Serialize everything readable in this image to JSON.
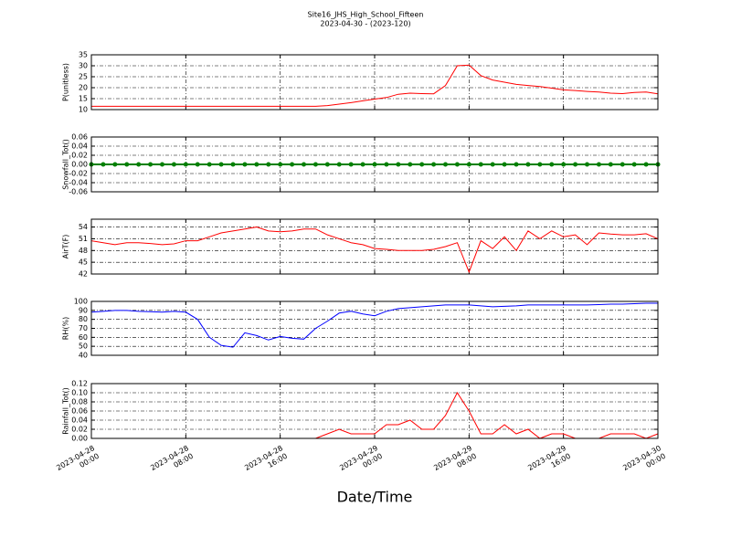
{
  "title": "Site16_JHS_High_School_Fifteen",
  "subtitle": "2023-04-30 - (2023-120)",
  "xlabel": "Date/Time",
  "chart_data": [
    {
      "type": "line",
      "ylabel": "P(unitless)",
      "color": "#ff0000",
      "grid": true,
      "x": [
        "2023-04-28 00:00",
        "2023-04-28 01:00",
        "2023-04-28 02:00",
        "2023-04-28 03:00",
        "2023-04-28 04:00",
        "2023-04-28 05:00",
        "2023-04-28 06:00",
        "2023-04-28 07:00",
        "2023-04-28 08:00",
        "2023-04-28 09:00",
        "2023-04-28 10:00",
        "2023-04-28 11:00",
        "2023-04-28 12:00",
        "2023-04-28 13:00",
        "2023-04-28 14:00",
        "2023-04-28 15:00",
        "2023-04-28 16:00",
        "2023-04-28 17:00",
        "2023-04-28 18:00",
        "2023-04-28 19:00",
        "2023-04-28 20:00",
        "2023-04-28 21:00",
        "2023-04-28 22:00",
        "2023-04-28 23:00",
        "2023-04-29 00:00",
        "2023-04-29 01:00",
        "2023-04-29 02:00",
        "2023-04-29 03:00",
        "2023-04-29 04:00",
        "2023-04-29 05:00",
        "2023-04-29 06:00",
        "2023-04-29 07:00",
        "2023-04-29 08:00",
        "2023-04-29 09:00",
        "2023-04-29 10:00",
        "2023-04-29 11:00",
        "2023-04-29 12:00",
        "2023-04-29 13:00",
        "2023-04-29 14:00",
        "2023-04-29 15:00",
        "2023-04-29 16:00",
        "2023-04-29 17:00",
        "2023-04-29 18:00",
        "2023-04-29 19:00",
        "2023-04-29 20:00",
        "2023-04-29 21:00",
        "2023-04-29 22:00",
        "2023-04-29 23:00",
        "2023-04-30 00:00"
      ],
      "values": [
        11.5,
        11.5,
        11.5,
        11.5,
        11.5,
        11.5,
        11.5,
        11.5,
        11.5,
        11.5,
        11.5,
        11.5,
        11.5,
        11.5,
        11.5,
        11.5,
        11.5,
        11.5,
        11.5,
        11.5,
        11.8,
        12.5,
        13.2,
        14,
        14.8,
        15.5,
        17,
        17.5,
        17.3,
        17.2,
        21,
        30,
        30.3,
        25.5,
        23.5,
        22.5,
        21.5,
        21,
        20.5,
        19.8,
        19,
        18.7,
        18.3,
        18,
        17.5,
        17.3,
        17.8,
        18,
        17.2
      ],
      "xlim": [
        "2023-04-28 00:00",
        "2023-04-30 00:00"
      ],
      "xticks": [
        "2023-04-28 00:00",
        "2023-04-28 08:00",
        "2023-04-28 16:00",
        "2023-04-29 00:00",
        "2023-04-29 08:00",
        "2023-04-29 16:00",
        "2023-04-30 00:00"
      ],
      "ylim": [
        10,
        35
      ],
      "yticks": [
        10,
        15,
        20,
        25,
        30,
        35
      ]
    },
    {
      "type": "line",
      "ylabel": "Snowfall_Tot()",
      "color": "#008000",
      "grid": true,
      "markers": true,
      "x": [
        "2023-04-28 00:00",
        "2023-04-28 01:00",
        "2023-04-28 02:00",
        "2023-04-28 03:00",
        "2023-04-28 04:00",
        "2023-04-28 05:00",
        "2023-04-28 06:00",
        "2023-04-28 07:00",
        "2023-04-28 08:00",
        "2023-04-28 09:00",
        "2023-04-28 10:00",
        "2023-04-28 11:00",
        "2023-04-28 12:00",
        "2023-04-28 13:00",
        "2023-04-28 14:00",
        "2023-04-28 15:00",
        "2023-04-28 16:00",
        "2023-04-28 17:00",
        "2023-04-28 18:00",
        "2023-04-28 19:00",
        "2023-04-28 20:00",
        "2023-04-28 21:00",
        "2023-04-28 22:00",
        "2023-04-28 23:00",
        "2023-04-29 00:00",
        "2023-04-29 01:00",
        "2023-04-29 02:00",
        "2023-04-29 03:00",
        "2023-04-29 04:00",
        "2023-04-29 05:00",
        "2023-04-29 06:00",
        "2023-04-29 07:00",
        "2023-04-29 08:00",
        "2023-04-29 09:00",
        "2023-04-29 10:00",
        "2023-04-29 11:00",
        "2023-04-29 12:00",
        "2023-04-29 13:00",
        "2023-04-29 14:00",
        "2023-04-29 15:00",
        "2023-04-29 16:00",
        "2023-04-29 17:00",
        "2023-04-29 18:00",
        "2023-04-29 19:00",
        "2023-04-29 20:00",
        "2023-04-29 21:00",
        "2023-04-29 22:00",
        "2023-04-29 23:00",
        "2023-04-30 00:00"
      ],
      "values": [
        0,
        0,
        0,
        0,
        0,
        0,
        0,
        0,
        0,
        0,
        0,
        0,
        0,
        0,
        0,
        0,
        0,
        0,
        0,
        0,
        0,
        0,
        0,
        0,
        0,
        0,
        0,
        0,
        0,
        0,
        0,
        0,
        0,
        0,
        0,
        0,
        0,
        0,
        0,
        0,
        0,
        0,
        0,
        0,
        0,
        0,
        0,
        0,
        0
      ],
      "xlim": [
        "2023-04-28 00:00",
        "2023-04-30 00:00"
      ],
      "xticks": [
        "2023-04-28 00:00",
        "2023-04-28 08:00",
        "2023-04-28 16:00",
        "2023-04-29 00:00",
        "2023-04-29 08:00",
        "2023-04-29 16:00",
        "2023-04-30 00:00"
      ],
      "ylim": [
        -0.06,
        0.06
      ],
      "yticks": [
        -0.06,
        -0.04,
        -0.02,
        {
          "value": 0,
          "label": "0.00"
        },
        0.02,
        0.04,
        0.06
      ]
    },
    {
      "type": "line",
      "ylabel": "AirT(F)",
      "color": "#ff0000",
      "grid": true,
      "x": [
        "2023-04-28 00:00",
        "2023-04-28 01:00",
        "2023-04-28 02:00",
        "2023-04-28 03:00",
        "2023-04-28 04:00",
        "2023-04-28 05:00",
        "2023-04-28 06:00",
        "2023-04-28 07:00",
        "2023-04-28 08:00",
        "2023-04-28 09:00",
        "2023-04-28 10:00",
        "2023-04-28 11:00",
        "2023-04-28 12:00",
        "2023-04-28 13:00",
        "2023-04-28 14:00",
        "2023-04-28 15:00",
        "2023-04-28 16:00",
        "2023-04-28 17:00",
        "2023-04-28 18:00",
        "2023-04-28 19:00",
        "2023-04-28 20:00",
        "2023-04-28 21:00",
        "2023-04-28 22:00",
        "2023-04-28 23:00",
        "2023-04-29 00:00",
        "2023-04-29 01:00",
        "2023-04-29 02:00",
        "2023-04-29 03:00",
        "2023-04-29 04:00",
        "2023-04-29 05:00",
        "2023-04-29 06:00",
        "2023-04-29 07:00",
        "2023-04-29 08:00",
        "2023-04-29 09:00",
        "2023-04-29 10:00",
        "2023-04-29 11:00",
        "2023-04-29 12:00",
        "2023-04-29 13:00",
        "2023-04-29 14:00",
        "2023-04-29 15:00",
        "2023-04-29 16:00",
        "2023-04-29 17:00",
        "2023-04-29 18:00",
        "2023-04-29 19:00",
        "2023-04-29 20:00",
        "2023-04-29 21:00",
        "2023-04-29 22:00",
        "2023-04-29 23:00",
        "2023-04-30 00:00"
      ],
      "values": [
        50.5,
        50,
        49.5,
        50,
        50,
        49.8,
        49.5,
        49.7,
        50.5,
        50.5,
        51.5,
        52.5,
        53,
        53.5,
        54,
        53,
        52.8,
        53,
        53.5,
        53.5,
        52,
        51,
        50,
        49.5,
        48.5,
        48.3,
        48,
        48,
        48,
        48.3,
        49,
        50,
        42.5,
        50.5,
        48.5,
        51.5,
        48,
        53,
        51,
        53,
        51.5,
        52,
        49.5,
        52.5,
        52.2,
        52,
        52,
        52.3,
        51
      ],
      "xlim": [
        "2023-04-28 00:00",
        "2023-04-30 00:00"
      ],
      "xticks": [
        "2023-04-28 00:00",
        "2023-04-28 08:00",
        "2023-04-28 16:00",
        "2023-04-29 00:00",
        "2023-04-29 08:00",
        "2023-04-29 16:00",
        "2023-04-30 00:00"
      ],
      "ylim": [
        42,
        56
      ],
      "yticks": [
        42,
        45,
        48,
        51,
        54
      ]
    },
    {
      "type": "line",
      "ylabel": "RH(%)",
      "color": "#0000ff",
      "grid": true,
      "x": [
        "2023-04-28 00:00",
        "2023-04-28 01:00",
        "2023-04-28 02:00",
        "2023-04-28 03:00",
        "2023-04-28 04:00",
        "2023-04-28 05:00",
        "2023-04-28 06:00",
        "2023-04-28 07:00",
        "2023-04-28 08:00",
        "2023-04-28 09:00",
        "2023-04-28 10:00",
        "2023-04-28 11:00",
        "2023-04-28 12:00",
        "2023-04-28 13:00",
        "2023-04-28 14:00",
        "2023-04-28 15:00",
        "2023-04-28 16:00",
        "2023-04-28 17:00",
        "2023-04-28 18:00",
        "2023-04-28 19:00",
        "2023-04-28 20:00",
        "2023-04-28 21:00",
        "2023-04-28 22:00",
        "2023-04-28 23:00",
        "2023-04-29 00:00",
        "2023-04-29 01:00",
        "2023-04-29 02:00",
        "2023-04-29 03:00",
        "2023-04-29 04:00",
        "2023-04-29 05:00",
        "2023-04-29 06:00",
        "2023-04-29 07:00",
        "2023-04-29 08:00",
        "2023-04-29 09:00",
        "2023-04-29 10:00",
        "2023-04-29 11:00",
        "2023-04-29 12:00",
        "2023-04-29 13:00",
        "2023-04-29 14:00",
        "2023-04-29 15:00",
        "2023-04-29 16:00",
        "2023-04-29 17:00",
        "2023-04-29 18:00",
        "2023-04-29 19:00",
        "2023-04-29 20:00",
        "2023-04-29 21:00",
        "2023-04-29 22:00",
        "2023-04-29 23:00",
        "2023-04-30 00:00"
      ],
      "values": [
        88,
        89,
        90,
        90,
        89,
        88.5,
        88,
        89,
        88,
        80,
        60,
        51,
        49,
        65,
        62,
        57,
        61,
        59,
        58,
        70,
        78,
        87,
        89,
        86,
        84,
        89,
        92,
        93,
        94,
        95,
        96,
        96,
        96,
        95,
        94,
        94.5,
        95,
        96,
        96,
        96,
        96,
        96,
        96,
        96.5,
        97,
        97,
        97.5,
        98,
        98
      ],
      "xlim": [
        "2023-04-28 00:00",
        "2023-04-30 00:00"
      ],
      "xticks": [
        "2023-04-28 00:00",
        "2023-04-28 08:00",
        "2023-04-28 16:00",
        "2023-04-29 00:00",
        "2023-04-29 08:00",
        "2023-04-29 16:00",
        "2023-04-30 00:00"
      ],
      "ylim": [
        40,
        100
      ],
      "yticks": [
        40,
        50,
        60,
        70,
        80,
        90,
        100
      ]
    },
    {
      "type": "line",
      "ylabel": "Rainfall_Tot()",
      "color": "#ff0000",
      "grid": true,
      "x": [
        "2023-04-28 00:00",
        "2023-04-28 01:00",
        "2023-04-28 02:00",
        "2023-04-28 03:00",
        "2023-04-28 04:00",
        "2023-04-28 05:00",
        "2023-04-28 06:00",
        "2023-04-28 07:00",
        "2023-04-28 08:00",
        "2023-04-28 09:00",
        "2023-04-28 10:00",
        "2023-04-28 11:00",
        "2023-04-28 12:00",
        "2023-04-28 13:00",
        "2023-04-28 14:00",
        "2023-04-28 15:00",
        "2023-04-28 16:00",
        "2023-04-28 17:00",
        "2023-04-28 18:00",
        "2023-04-28 19:00",
        "2023-04-28 20:00",
        "2023-04-28 21:00",
        "2023-04-28 22:00",
        "2023-04-28 23:00",
        "2023-04-29 00:00",
        "2023-04-29 01:00",
        "2023-04-29 02:00",
        "2023-04-29 03:00",
        "2023-04-29 04:00",
        "2023-04-29 05:00",
        "2023-04-29 06:00",
        "2023-04-29 07:00",
        "2023-04-29 08:00",
        "2023-04-29 09:00",
        "2023-04-29 10:00",
        "2023-04-29 11:00",
        "2023-04-29 12:00",
        "2023-04-29 13:00",
        "2023-04-29 14:00",
        "2023-04-29 15:00",
        "2023-04-29 16:00",
        "2023-04-29 17:00",
        "2023-04-29 18:00",
        "2023-04-29 19:00",
        "2023-04-29 20:00",
        "2023-04-29 21:00",
        "2023-04-29 22:00",
        "2023-04-29 23:00",
        "2023-04-30 00:00"
      ],
      "values": [
        0,
        0,
        0,
        0,
        0,
        0,
        0,
        0,
        0,
        0,
        0,
        0,
        0,
        0,
        0,
        0,
        0,
        0,
        0,
        0,
        0.01,
        0.02,
        0.01,
        0.01,
        0.01,
        0.03,
        0.03,
        0.04,
        0.02,
        0.02,
        0.05,
        0.1,
        0.06,
        0.01,
        0.01,
        0.03,
        0.01,
        0.02,
        0,
        0.01,
        0.01,
        0,
        0,
        0,
        0.01,
        0.01,
        0.01,
        0,
        0.01
      ],
      "xlim": [
        "2023-04-28 00:00",
        "2023-04-30 00:00"
      ],
      "xticks": [
        {
          "value": "2023-04-28 00:00",
          "label": "2023-04-28\n00:00"
        },
        {
          "value": "2023-04-28 08:00",
          "label": "2023-04-28\n08:00"
        },
        {
          "value": "2023-04-28 16:00",
          "label": "2023-04-28\n16:00"
        },
        {
          "value": "2023-04-29 00:00",
          "label": "2023-04-29\n00:00"
        },
        {
          "value": "2023-04-29 08:00",
          "label": "2023-04-29\n08:00"
        },
        {
          "value": "2023-04-29 16:00",
          "label": "2023-04-29\n16:00"
        },
        {
          "value": "2023-04-30 00:00",
          "label": "2023-04-30\n00:00"
        }
      ],
      "ylim": [
        0,
        0.12
      ],
      "yticks": [
        {
          "value": 0,
          "label": "0.00"
        },
        0.02,
        0.04,
        0.06,
        0.08,
        {
          "value": 0.1,
          "label": "0.10"
        },
        0.12
      ]
    }
  ]
}
